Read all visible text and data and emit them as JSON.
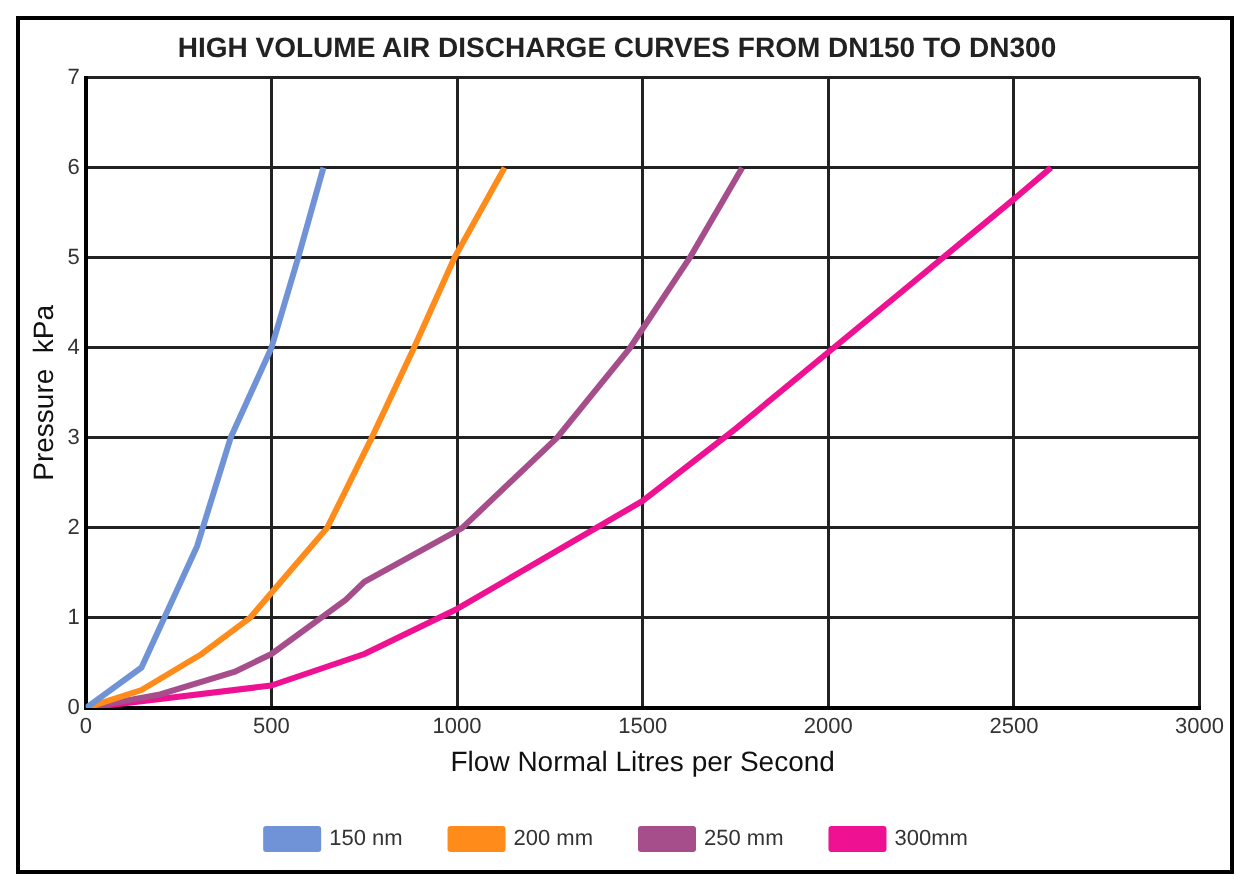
{
  "chart_data": {
    "type": "line",
    "title": "HIGH VOLUME AIR DISCHARGE CURVES FROM DN150 TO DN300",
    "xlabel": "Flow Normal Litres per Second",
    "ylabel": "Pressure  kPa",
    "xlim": [
      0,
      3000
    ],
    "xticks": [
      0,
      500,
      1000,
      1500,
      2000,
      2500,
      3000
    ],
    "ylim": [
      0,
      7
    ],
    "yticks": [
      0,
      1,
      2,
      3,
      4,
      5,
      6,
      7
    ],
    "grid": true,
    "legend": "bottom",
    "marker": "none",
    "line_style": "solid",
    "series": [
      {
        "name": "150 nm",
        "color": "#6f93d6",
        "x": [
          0,
          150,
          300,
          390,
          500,
          572,
          640
        ],
        "values": [
          0,
          0.45,
          1.8,
          3,
          4,
          5,
          6
        ]
      },
      {
        "name": "200 mm",
        "color": "#ff8c1a",
        "x": [
          0,
          150,
          312,
          442,
          650,
          770,
          884,
          993,
          1128
        ],
        "values": [
          0,
          0.2,
          0.6,
          1,
          2,
          3,
          4,
          5,
          6
        ]
      },
      {
        "name": "250 mm",
        "color": "#a64d8c",
        "x": [
          0,
          200,
          400,
          500,
          700,
          750,
          1014,
          1269,
          1466,
          1627,
          1768
        ],
        "values": [
          0,
          0.15,
          0.4,
          0.6,
          1.2,
          1.4,
          2,
          3,
          4,
          5,
          6
        ]
      },
      {
        "name": "300mm",
        "color": "#ee1192",
        "x": [
          0,
          500,
          750,
          1000,
          1250,
          1500,
          1750,
          2000,
          2250,
          2500,
          2600
        ],
        "values": [
          0,
          0.25,
          0.6,
          1.1,
          1.7,
          2.3,
          3.1,
          3.95,
          4.8,
          5.65,
          6
        ]
      }
    ]
  }
}
